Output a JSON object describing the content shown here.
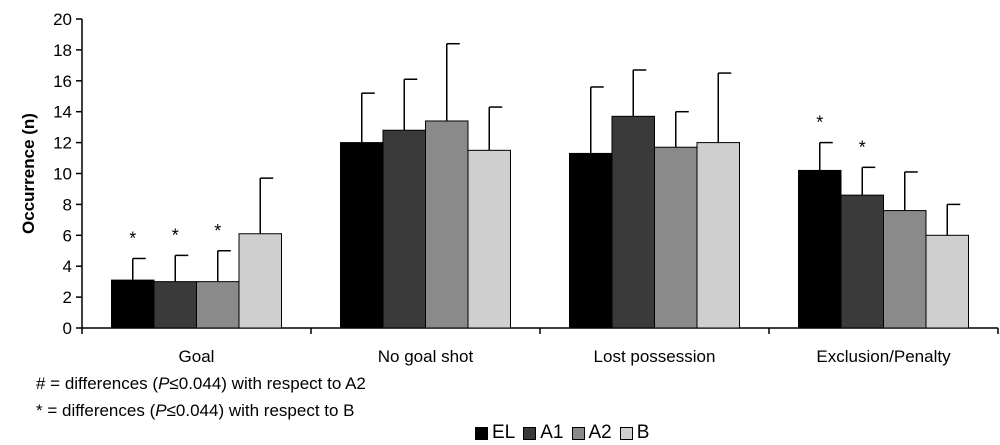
{
  "chart_data": {
    "type": "bar",
    "categories": [
      "Goal",
      "No goal shot",
      "Lost possession",
      "Exclusion/Penalty"
    ],
    "ylabel": "Occurrence (n)",
    "xlabel": "",
    "ylim": [
      0,
      20
    ],
    "yticks": [
      0,
      2,
      4,
      6,
      8,
      10,
      12,
      14,
      16,
      18,
      20
    ],
    "grid": false,
    "legend_position": "bottom",
    "series": [
      {
        "name": "EL",
        "color": "#000000",
        "values": [
          3.1,
          12.0,
          11.3,
          10.2
        ],
        "errors": [
          1.4,
          3.2,
          4.3,
          1.8
        ],
        "marks": [
          "*",
          "",
          "",
          "*"
        ]
      },
      {
        "name": "A1",
        "color": "#3a3a3a",
        "values": [
          3.0,
          12.8,
          13.7,
          8.6
        ],
        "errors": [
          1.7,
          3.3,
          3.0,
          1.8
        ],
        "marks": [
          "*",
          "",
          "",
          "*"
        ]
      },
      {
        "name": "A2",
        "color": "#8a8a8a",
        "values": [
          3.0,
          13.4,
          11.7,
          7.6
        ],
        "errors": [
          2.0,
          5.0,
          2.3,
          2.5
        ],
        "marks": [
          "*",
          "",
          "",
          ""
        ]
      },
      {
        "name": "B",
        "color": "#cfcfcf",
        "values": [
          6.1,
          11.5,
          12.0,
          6.0
        ],
        "errors": [
          3.6,
          2.8,
          4.5,
          2.0
        ],
        "marks": [
          "",
          "",
          "",
          ""
        ]
      }
    ]
  },
  "notes": {
    "hash_prefix": "# = differences (",
    "hash_p": "P",
    "hash_suffix": "≤0.044) with respect to A2",
    "star_prefix": "* = differences (",
    "star_p": "P",
    "star_suffix": "≤0.044) with respect to B"
  }
}
